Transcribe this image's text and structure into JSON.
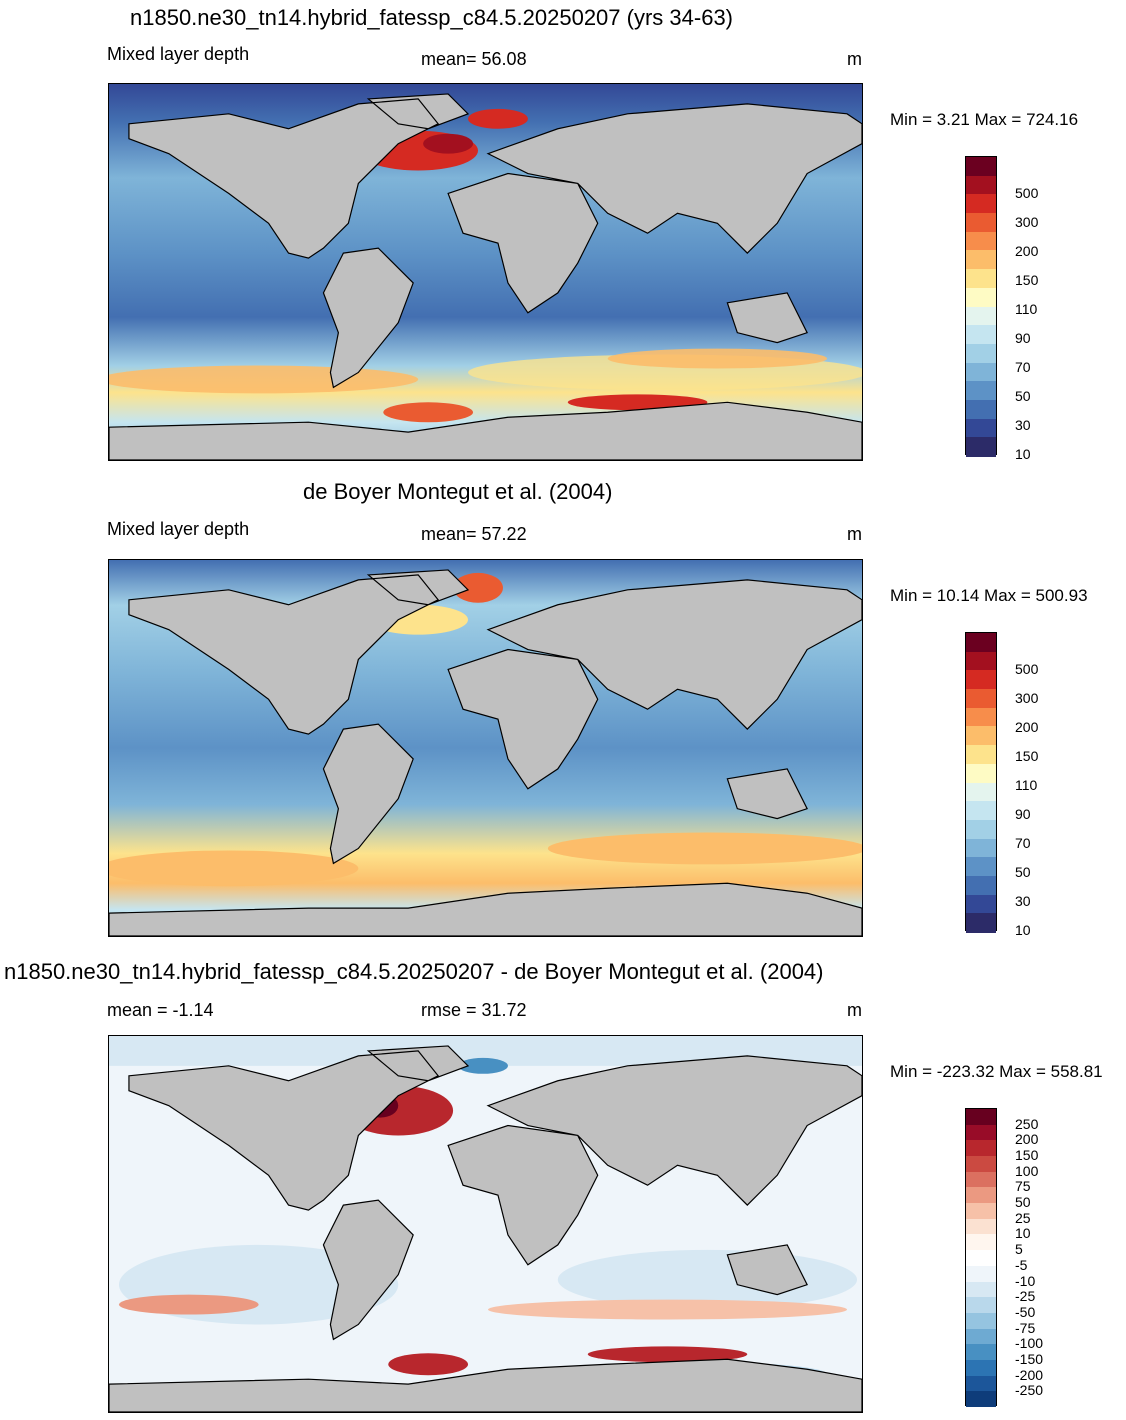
{
  "panels": [
    {
      "title": "n1850.ne30_tn14.hybrid_fatessp_c84.5.20250207 (yrs 34-63)",
      "left_label": "Mixed layer depth",
      "center_label": "mean=  56.08",
      "units": "m",
      "minmax": "Min =   3.21 Max = 724.16",
      "colorbar_labels": [
        "500",
        "300",
        "200",
        "150",
        "110",
        "90",
        "70",
        "50",
        "30",
        "10"
      ]
    },
    {
      "title": "de Boyer Montegut et al. (2004)",
      "left_label": "Mixed layer depth",
      "center_label": "mean=  57.22",
      "units": "m",
      "minmax": "Min =  10.14 Max = 500.93",
      "colorbar_labels": [
        "500",
        "300",
        "200",
        "150",
        "110",
        "90",
        "70",
        "50",
        "30",
        "10"
      ]
    },
    {
      "title": "n1850.ne30_tn14.hybrid_fatessp_c84.5.20250207 - de Boyer Montegut et al. (2004)",
      "left_label": "mean =  -1.14",
      "center_label": "rmse =  31.72",
      "units": "m",
      "minmax": "Min = -223.32 Max = 558.81",
      "colorbar_labels": [
        "250",
        "200",
        "150",
        "100",
        "75",
        "50",
        "25",
        "10",
        "5",
        "-5",
        "-10",
        "-25",
        "-50",
        "-75",
        "-100",
        "-150",
        "-200",
        "-250"
      ]
    }
  ],
  "colors": {
    "land": "#c0c0c0",
    "abs_scale": [
      "#6b0020",
      "#a3101f",
      "#d52a22",
      "#ea5b31",
      "#f78d4b",
      "#fcbd6a",
      "#fde38c",
      "#fefbc4",
      "#e4f4ee",
      "#c5e5f0",
      "#a2d0e6",
      "#7fb4d8",
      "#5d92c6",
      "#436fb1",
      "#334896",
      "#2c2b68"
    ],
    "diff_scale": [
      "#67001f",
      "#980c28",
      "#b8272d",
      "#cb4a41",
      "#db7060",
      "#eb9981",
      "#f6c1a8",
      "#fbe1d1",
      "#fff6ef",
      "#ffffff",
      "#eff5fa",
      "#d7e8f3",
      "#b9d8eb",
      "#95c4e0",
      "#6eaad2",
      "#4890c2",
      "#2c74b3",
      "#1c569a",
      "#0e3c7a"
    ]
  }
}
